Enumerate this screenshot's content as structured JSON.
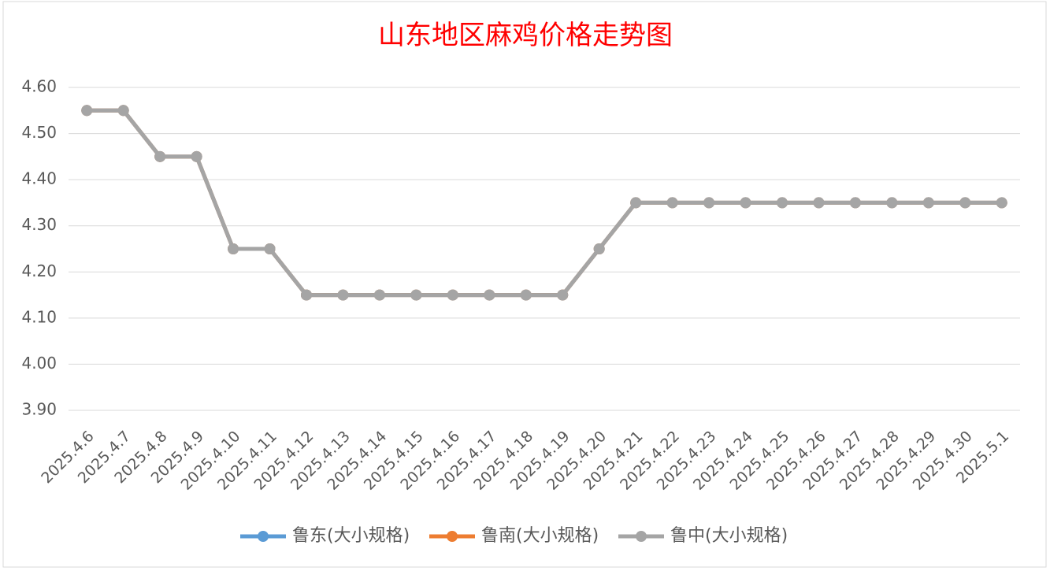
{
  "chart_data": {
    "type": "line",
    "title": "山东地区麻鸡价格走势图",
    "categories": [
      "2025.4.6",
      "2025.4.7",
      "2025.4.8",
      "2025.4.9",
      "2025.4.10",
      "2025.4.11",
      "2025.4.12",
      "2025.4.13",
      "2025.4.14",
      "2025.4.15",
      "2025.4.16",
      "2025.4.17",
      "2025.4.18",
      "2025.4.19",
      "2025.4.20",
      "2025.4.21",
      "2025.4.22",
      "2025.4.23",
      "2025.4.24",
      "2025.4.25",
      "2025.4.26",
      "2025.4.27",
      "2025.4.28",
      "2025.4.29",
      "2025.4.30",
      "2025.5.1"
    ],
    "series": [
      {
        "name": "鲁东(大小规格)",
        "color": "#5b9bd5",
        "values": [
          4.55,
          4.55,
          4.45,
          4.45,
          4.25,
          4.25,
          4.15,
          4.15,
          4.15,
          4.15,
          4.15,
          4.15,
          4.15,
          4.15,
          4.25,
          4.35,
          4.35,
          4.35,
          4.35,
          4.35,
          4.35,
          4.35,
          4.35,
          4.35,
          4.35,
          4.35
        ]
      },
      {
        "name": "鲁南(大小规格)",
        "color": "#ed7d31",
        "values": [
          4.55,
          4.55,
          4.45,
          4.45,
          4.25,
          4.25,
          4.15,
          4.15,
          4.15,
          4.15,
          4.15,
          4.15,
          4.15,
          4.15,
          4.25,
          4.35,
          4.35,
          4.35,
          4.35,
          4.35,
          4.35,
          4.35,
          4.35,
          4.35,
          4.35,
          4.35
        ]
      },
      {
        "name": "鲁中(大小规格)",
        "color": "#a5a5a5",
        "values": [
          4.55,
          4.55,
          4.45,
          4.45,
          4.25,
          4.25,
          4.15,
          4.15,
          4.15,
          4.15,
          4.15,
          4.15,
          4.15,
          4.15,
          4.25,
          4.35,
          4.35,
          4.35,
          4.35,
          4.35,
          4.35,
          4.35,
          4.35,
          4.35,
          4.35,
          4.35
        ]
      }
    ],
    "ylim": [
      3.9,
      4.6
    ],
    "yticks": [
      {
        "value": 3.9,
        "label": "3.90"
      },
      {
        "value": 4.0,
        "label": "4.00"
      },
      {
        "value": 4.1,
        "label": "4.10"
      },
      {
        "value": 4.2,
        "label": "4.20"
      },
      {
        "value": 4.3,
        "label": "4.30"
      },
      {
        "value": 4.4,
        "label": "4.40"
      },
      {
        "value": 4.5,
        "label": "4.50"
      },
      {
        "value": 4.6,
        "label": "4.60"
      }
    ],
    "grid": true,
    "legend": "bottom"
  }
}
